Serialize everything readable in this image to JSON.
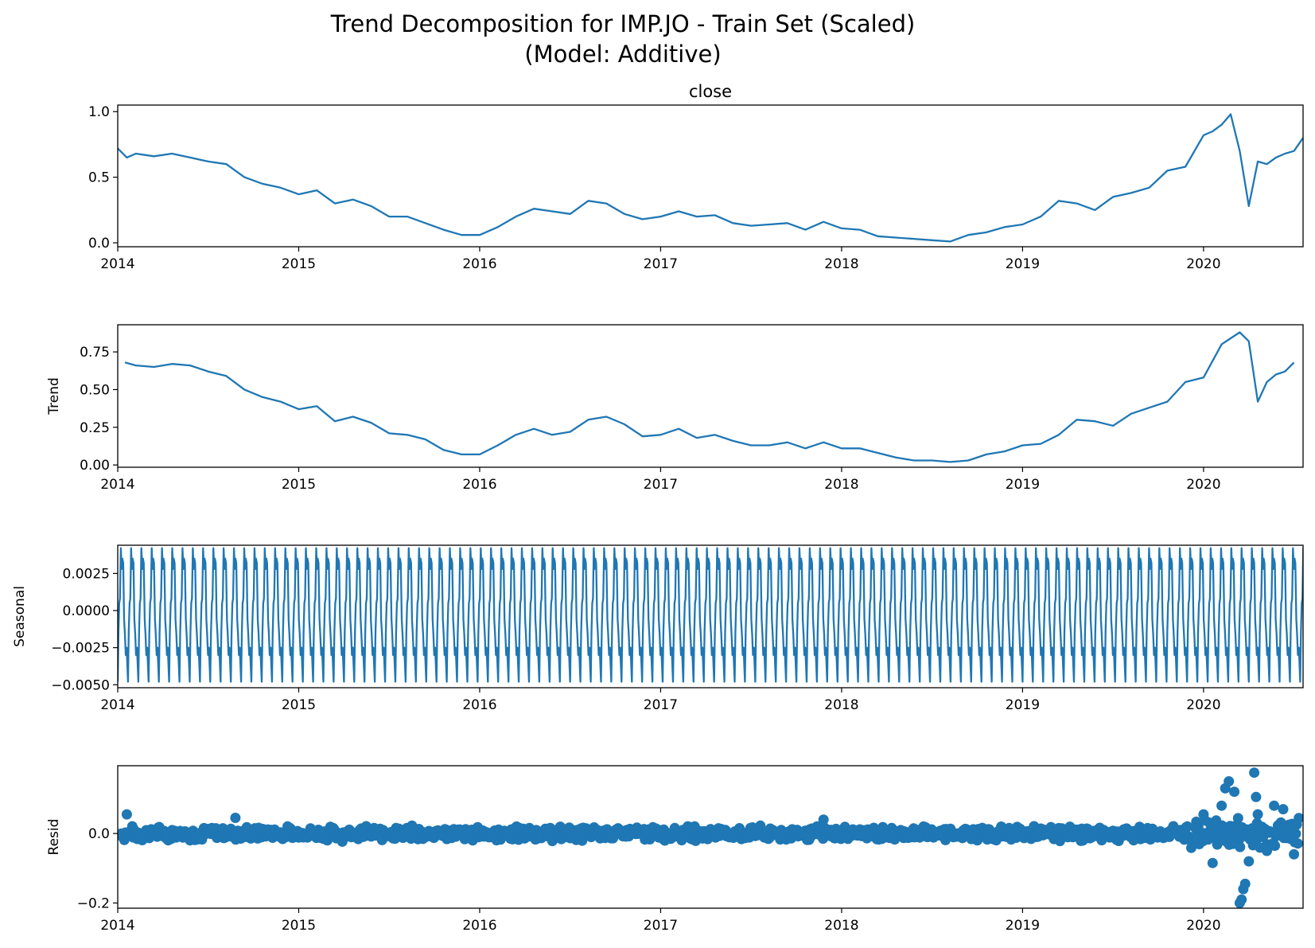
{
  "figure": {
    "title_line1": "Trend Decomposition for IMP.JO - Train Set (Scaled)",
    "title_line2": "(Model: Additive)"
  },
  "colors": {
    "series": "#1f77b4",
    "axis": "#000000",
    "background": "#ffffff"
  },
  "chart_data": [
    {
      "type": "line",
      "title": "close",
      "ylabel": "",
      "xlim": [
        2014.0,
        2020.55
      ],
      "ylim": [
        -0.03,
        1.05
      ],
      "x_ticks": [
        2014,
        2015,
        2016,
        2017,
        2018,
        2019,
        2020
      ],
      "x_tick_labels": [
        "2014",
        "2015",
        "2016",
        "2017",
        "2018",
        "2019",
        "2020"
      ],
      "y_ticks": [
        0.0,
        0.5,
        1.0
      ],
      "y_tick_labels": [
        "0.0",
        "0.5",
        "1.0"
      ],
      "series": [
        {
          "x": [
            2014.0,
            2014.05,
            2014.1,
            2014.2,
            2014.3,
            2014.4,
            2014.5,
            2014.6,
            2014.7,
            2014.8,
            2014.9,
            2015.0,
            2015.1,
            2015.2,
            2015.3,
            2015.4,
            2015.5,
            2015.6,
            2015.7,
            2015.8,
            2015.9,
            2016.0,
            2016.1,
            2016.2,
            2016.3,
            2016.4,
            2016.5,
            2016.6,
            2016.7,
            2016.8,
            2016.9,
            2017.0,
            2017.1,
            2017.2,
            2017.3,
            2017.4,
            2017.5,
            2017.6,
            2017.7,
            2017.8,
            2017.9,
            2018.0,
            2018.1,
            2018.2,
            2018.3,
            2018.4,
            2018.5,
            2018.6,
            2018.7,
            2018.8,
            2018.9,
            2019.0,
            2019.1,
            2019.2,
            2019.3,
            2019.4,
            2019.5,
            2019.6,
            2019.7,
            2019.8,
            2019.9,
            2020.0,
            2020.05,
            2020.1,
            2020.15,
            2020.2,
            2020.25,
            2020.3,
            2020.35,
            2020.4,
            2020.45,
            2020.5,
            2020.55
          ],
          "values": [
            0.72,
            0.65,
            0.68,
            0.66,
            0.68,
            0.65,
            0.62,
            0.6,
            0.5,
            0.45,
            0.42,
            0.37,
            0.4,
            0.3,
            0.33,
            0.28,
            0.2,
            0.2,
            0.15,
            0.1,
            0.06,
            0.06,
            0.12,
            0.2,
            0.26,
            0.24,
            0.22,
            0.32,
            0.3,
            0.22,
            0.18,
            0.2,
            0.24,
            0.2,
            0.21,
            0.15,
            0.13,
            0.14,
            0.15,
            0.1,
            0.16,
            0.11,
            0.1,
            0.05,
            0.04,
            0.03,
            0.02,
            0.01,
            0.06,
            0.08,
            0.12,
            0.14,
            0.2,
            0.32,
            0.3,
            0.25,
            0.35,
            0.38,
            0.42,
            0.55,
            0.58,
            0.82,
            0.85,
            0.9,
            0.98,
            0.7,
            0.28,
            0.62,
            0.6,
            0.65,
            0.68,
            0.7,
            0.8
          ]
        }
      ]
    },
    {
      "type": "line",
      "title": "",
      "ylabel": "Trend",
      "xlim": [
        2014.0,
        2020.55
      ],
      "ylim": [
        -0.015,
        0.93
      ],
      "x_ticks": [
        2014,
        2015,
        2016,
        2017,
        2018,
        2019,
        2020
      ],
      "x_tick_labels": [
        "2014",
        "2015",
        "2016",
        "2017",
        "2018",
        "2019",
        "2020"
      ],
      "y_ticks": [
        0.0,
        0.25,
        0.5,
        0.75
      ],
      "y_tick_labels": [
        "0.00",
        "0.25",
        "0.50",
        "0.75"
      ],
      "series": [
        {
          "x": [
            2014.04,
            2014.1,
            2014.2,
            2014.3,
            2014.4,
            2014.5,
            2014.6,
            2014.7,
            2014.8,
            2014.9,
            2015.0,
            2015.1,
            2015.2,
            2015.3,
            2015.4,
            2015.5,
            2015.6,
            2015.7,
            2015.8,
            2015.9,
            2016.0,
            2016.1,
            2016.2,
            2016.3,
            2016.4,
            2016.5,
            2016.6,
            2016.7,
            2016.8,
            2016.9,
            2017.0,
            2017.1,
            2017.2,
            2017.3,
            2017.4,
            2017.5,
            2017.6,
            2017.7,
            2017.8,
            2017.9,
            2018.0,
            2018.1,
            2018.2,
            2018.3,
            2018.4,
            2018.5,
            2018.6,
            2018.7,
            2018.8,
            2018.9,
            2019.0,
            2019.1,
            2019.2,
            2019.3,
            2019.4,
            2019.5,
            2019.6,
            2019.7,
            2019.8,
            2019.9,
            2020.0,
            2020.1,
            2020.15,
            2020.2,
            2020.25,
            2020.3,
            2020.35,
            2020.4,
            2020.45,
            2020.5
          ],
          "values": [
            0.68,
            0.66,
            0.65,
            0.67,
            0.66,
            0.62,
            0.59,
            0.5,
            0.45,
            0.42,
            0.37,
            0.39,
            0.29,
            0.32,
            0.28,
            0.21,
            0.2,
            0.17,
            0.1,
            0.07,
            0.07,
            0.13,
            0.2,
            0.24,
            0.2,
            0.22,
            0.3,
            0.32,
            0.27,
            0.19,
            0.2,
            0.24,
            0.18,
            0.2,
            0.16,
            0.13,
            0.13,
            0.15,
            0.11,
            0.15,
            0.11,
            0.11,
            0.08,
            0.05,
            0.03,
            0.03,
            0.02,
            0.03,
            0.07,
            0.09,
            0.13,
            0.14,
            0.2,
            0.3,
            0.29,
            0.26,
            0.34,
            0.38,
            0.42,
            0.55,
            0.58,
            0.8,
            0.84,
            0.88,
            0.82,
            0.42,
            0.55,
            0.6,
            0.62,
            0.68
          ]
        }
      ]
    },
    {
      "type": "line",
      "title": "",
      "ylabel": "Seasonal",
      "xlim": [
        2014.0,
        2020.55
      ],
      "ylim": [
        -0.0052,
        0.0044
      ],
      "x_ticks": [
        2014,
        2015,
        2016,
        2017,
        2018,
        2019,
        2020
      ],
      "x_tick_labels": [
        "2014",
        "2015",
        "2016",
        "2017",
        "2018",
        "2019",
        "2020"
      ],
      "y_ticks": [
        -0.005,
        -0.0025,
        0.0,
        0.0025
      ],
      "y_tick_labels": [
        "−0.0050",
        "−0.0025",
        "0.0000",
        "0.0025"
      ],
      "cycles_per_year": 17.6,
      "series": [
        {
          "cycle_phase": [
            0.0,
            0.07,
            0.15,
            0.22,
            0.3,
            0.38,
            0.45,
            0.53,
            0.62,
            0.7,
            0.78,
            0.87,
            1.0
          ],
          "cycle_values": [
            -0.0048,
            -0.0015,
            0.0005,
            0.0008,
            0.0042,
            0.0028,
            0.0035,
            0.0032,
            -0.0006,
            -0.0016,
            -0.003,
            -0.0025,
            -0.0048
          ]
        }
      ]
    },
    {
      "type": "scatter",
      "title": "",
      "ylabel": "Resid",
      "xlim": [
        2014.0,
        2020.55
      ],
      "ylim": [
        -0.215,
        0.195
      ],
      "x_ticks": [
        2014,
        2015,
        2016,
        2017,
        2018,
        2019,
        2020
      ],
      "x_tick_labels": [
        "2014",
        "2015",
        "2016",
        "2017",
        "2018",
        "2019",
        "2020"
      ],
      "y_ticks": [
        -0.2,
        0.0
      ],
      "y_tick_labels": [
        "−0.2",
        "0.0"
      ],
      "series": [
        {
          "typical_spread": 0.02,
          "outliers": [
            {
              "x": 2014.05,
              "y": 0.055
            },
            {
              "x": 2014.65,
              "y": 0.045
            },
            {
              "x": 2017.9,
              "y": 0.04
            },
            {
              "x": 2020.0,
              "y": 0.055
            },
            {
              "x": 2020.1,
              "y": 0.08
            },
            {
              "x": 2020.12,
              "y": 0.13
            },
            {
              "x": 2020.14,
              "y": 0.15
            },
            {
              "x": 2020.17,
              "y": 0.12
            },
            {
              "x": 2020.2,
              "y": -0.2
            },
            {
              "x": 2020.21,
              "y": -0.19
            },
            {
              "x": 2020.22,
              "y": -0.16
            },
            {
              "x": 2020.23,
              "y": -0.145
            },
            {
              "x": 2020.05,
              "y": -0.085
            },
            {
              "x": 2020.25,
              "y": -0.08
            },
            {
              "x": 2020.28,
              "y": 0.175
            },
            {
              "x": 2020.29,
              "y": 0.105
            },
            {
              "x": 2020.3,
              "y": 0.055
            },
            {
              "x": 2020.39,
              "y": 0.08
            },
            {
              "x": 2020.44,
              "y": 0.07
            },
            {
              "x": 2020.5,
              "y": -0.06
            },
            {
              "x": 2020.35,
              "y": -0.05
            }
          ]
        }
      ]
    }
  ]
}
